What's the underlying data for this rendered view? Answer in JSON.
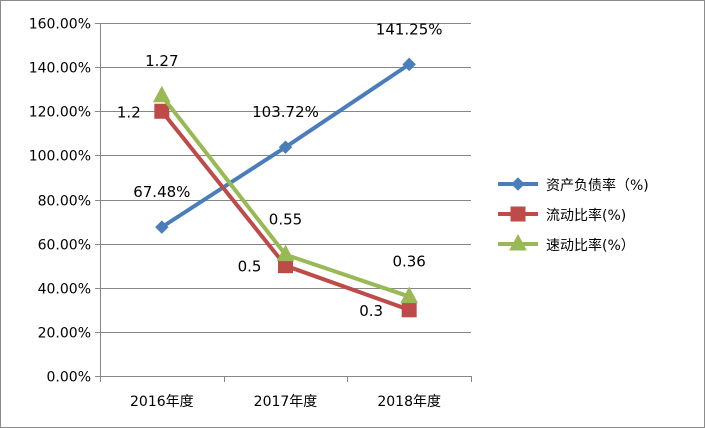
{
  "chart_data": {
    "type": "line",
    "categories": [
      "2016年度",
      "2017年度",
      "2018年度"
    ],
    "y_tick_labels": [
      "0.00%",
      "20.00%",
      "40.00%",
      "60.00%",
      "80.00%",
      "100.00%",
      "120.00%",
      "140.00%",
      "160.00%"
    ],
    "ylim": [
      0,
      1.6
    ],
    "grid": true,
    "legend_position": "right",
    "series": [
      {
        "name": "资产负债率（%)",
        "values": [
          0.6748,
          1.0372,
          1.4125
        ],
        "data_labels": [
          "67.48%",
          "103.72%",
          "141.25%"
        ],
        "color": "#4a7ebb",
        "marker": "diamond"
      },
      {
        "name": "流动比率(%)",
        "values": [
          1.2,
          0.5,
          0.3
        ],
        "data_labels": [
          "1.2",
          "0.5",
          "0.3"
        ],
        "color": "#be4b48",
        "marker": "square"
      },
      {
        "name": "速动比率(%）",
        "values": [
          1.27,
          0.55,
          0.36
        ],
        "data_labels": [
          "1.27",
          "0.55",
          "0.36"
        ],
        "color": "#98b954",
        "marker": "triangle"
      }
    ]
  }
}
